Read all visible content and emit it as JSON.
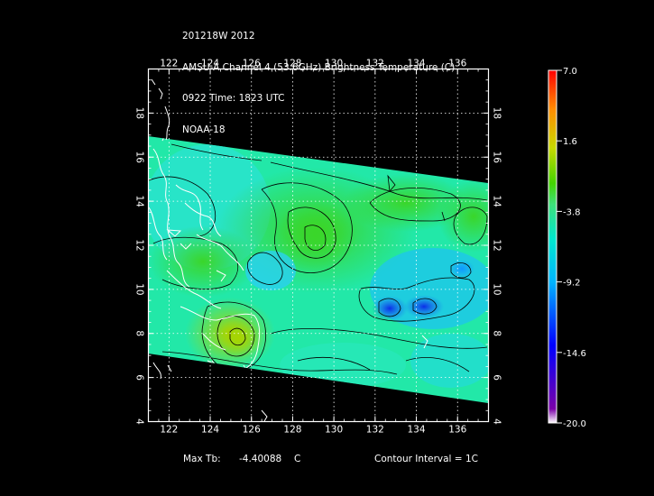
{
  "header": {
    "line1": "201218W 2012",
    "line2": "AMSU-A Channel 4 (53.6GHz) Brightness Temperature (C)",
    "line3": "0922 Time: 1823 UTC",
    "line4": "NOAA-18"
  },
  "axes": {
    "lon_ticks": [
      "122",
      "124",
      "126",
      "128",
      "130",
      "132",
      "134",
      "136"
    ],
    "lat_ticks": [
      "4",
      "6",
      "8",
      "10",
      "12",
      "14",
      "16",
      "18"
    ],
    "lon_range": [
      121,
      137.5
    ],
    "lat_range": [
      4,
      20
    ]
  },
  "colorbar": {
    "labels": [
      "7.0",
      "1.6",
      "-3.8",
      "-9.2",
      "-14.6",
      "-20.0"
    ],
    "range": [
      -20.0,
      7.0
    ],
    "colors": [
      "#ffffff",
      "#7a00a8",
      "#0000ff",
      "#00b4ff",
      "#00e8d0",
      "#3ee07a",
      "#44d400",
      "#c8d800",
      "#ff8c00",
      "#ff0000"
    ]
  },
  "footer": {
    "max_label": "Max Tb:",
    "max_value": "-4.40088",
    "max_unit": "C",
    "contour": "Contour Interval = 1C"
  },
  "colors": {
    "background": "#000000",
    "coast": "#ffffff",
    "contour": "#000000",
    "grid": "#ffffff"
  }
}
